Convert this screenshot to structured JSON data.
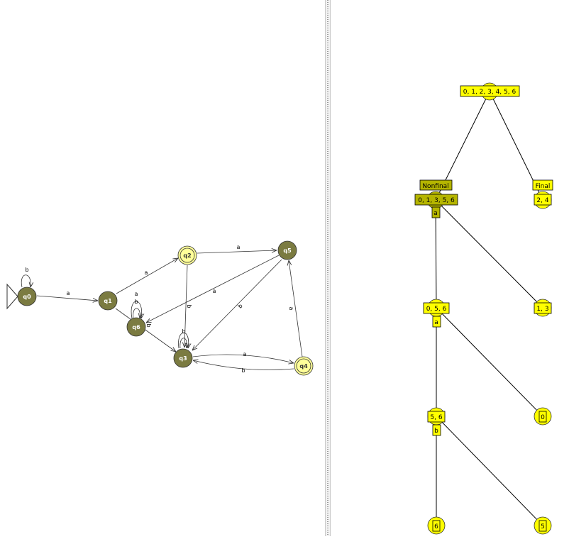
{
  "colors": {
    "state_fill": "#7b7b41",
    "final_fill": "#ffff99",
    "node_yellow": "#ffff00",
    "node_olive": "#b5b500",
    "edge": "#333333"
  },
  "automaton": {
    "states": [
      {
        "id": "q0",
        "label": "q0",
        "final": false,
        "initial": true
      },
      {
        "id": "q1",
        "label": "q1",
        "final": false,
        "initial": false
      },
      {
        "id": "q2",
        "label": "q2",
        "final": true,
        "initial": false
      },
      {
        "id": "q3",
        "label": "q3",
        "final": false,
        "initial": false
      },
      {
        "id": "q4",
        "label": "q4",
        "final": true,
        "initial": false
      },
      {
        "id": "q5",
        "label": "q5",
        "final": false,
        "initial": false
      },
      {
        "id": "q6",
        "label": "q6",
        "final": false,
        "initial": false
      }
    ],
    "transitions": [
      {
        "from": "q0",
        "to": "q0",
        "label": "b"
      },
      {
        "from": "q0",
        "to": "q1",
        "label": "a"
      },
      {
        "from": "q1",
        "to": "q2",
        "label": "a"
      },
      {
        "from": "q1",
        "to": "q3",
        "label": "b"
      },
      {
        "from": "q6",
        "to": "q6",
        "label": "a"
      },
      {
        "from": "q6",
        "to": "q6",
        "label": "b"
      },
      {
        "from": "q2",
        "to": "q5",
        "label": "a"
      },
      {
        "from": "q2",
        "to": "q3",
        "label": "b"
      },
      {
        "from": "q5",
        "to": "q6",
        "label": "a"
      },
      {
        "from": "q5",
        "to": "q3",
        "label": "b"
      },
      {
        "from": "q3",
        "to": "q3",
        "label": "b"
      },
      {
        "from": "q3",
        "to": "q4",
        "label": "a"
      },
      {
        "from": "q4",
        "to": "q3",
        "label": "b"
      },
      {
        "from": "q4",
        "to": "q5",
        "label": "a"
      }
    ]
  },
  "tree": {
    "root": {
      "label": "0, 1, 2, 3, 4, 5, 6"
    },
    "nonfinal_tag": "Nonfinal",
    "final_tag": "Final",
    "nonfinal": {
      "label": "0, 1, 3, 5, 6",
      "symbol": "a"
    },
    "final": {
      "label": "2, 4"
    },
    "n056": {
      "label": "0, 5, 6",
      "symbol": "a"
    },
    "n13": {
      "label": "1, 3"
    },
    "n56": {
      "label": "5, 6",
      "symbol": "b"
    },
    "n0": {
      "label": "0"
    },
    "n6": {
      "label": "6"
    },
    "n5": {
      "label": "5"
    }
  }
}
